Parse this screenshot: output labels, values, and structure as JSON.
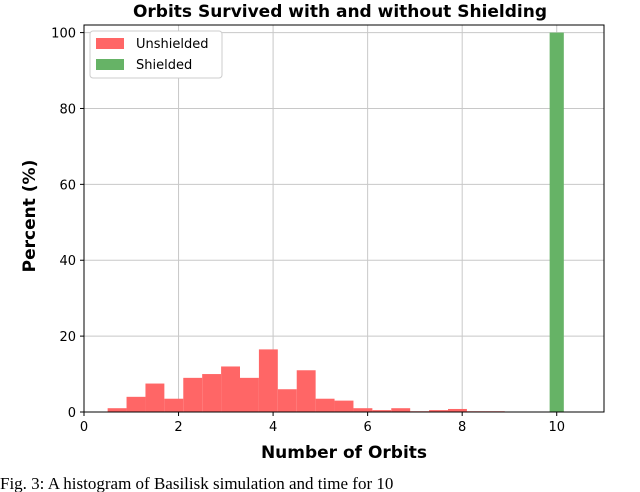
{
  "caption": "Fig. 3: A histogram of Basilisk simulation and time for 10",
  "chart_data": {
    "type": "bar",
    "title": "Orbits Survived with and without Shielding",
    "xlabel": "Number of Orbits",
    "ylabel": "Percent (%)",
    "xlim": [
      0,
      11
    ],
    "ylim": [
      0,
      102
    ],
    "xticks": [
      0,
      2,
      4,
      6,
      8,
      10
    ],
    "yticks": [
      0,
      20,
      40,
      60,
      80,
      100
    ],
    "grid": true,
    "legend_position": "top-left",
    "series": [
      {
        "name": "Unshielded",
        "color": "#ff6666",
        "bins": [
          {
            "x0": 0.5,
            "x1": 0.9,
            "value": 1
          },
          {
            "x0": 0.9,
            "x1": 1.3,
            "value": 4
          },
          {
            "x0": 1.3,
            "x1": 1.7,
            "value": 7.5
          },
          {
            "x0": 1.7,
            "x1": 2.1,
            "value": 3.5
          },
          {
            "x0": 2.1,
            "x1": 2.5,
            "value": 9
          },
          {
            "x0": 2.5,
            "x1": 2.9,
            "value": 10
          },
          {
            "x0": 2.9,
            "x1": 3.3,
            "value": 12
          },
          {
            "x0": 3.3,
            "x1": 3.7,
            "value": 9
          },
          {
            "x0": 3.7,
            "x1": 4.1,
            "value": 16.5
          },
          {
            "x0": 4.1,
            "x1": 4.5,
            "value": 6
          },
          {
            "x0": 4.5,
            "x1": 4.9,
            "value": 11
          },
          {
            "x0": 4.9,
            "x1": 5.3,
            "value": 3.5
          },
          {
            "x0": 5.3,
            "x1": 5.7,
            "value": 3
          },
          {
            "x0": 5.7,
            "x1": 6.1,
            "value": 1
          },
          {
            "x0": 6.1,
            "x1": 6.5,
            "value": 0.5
          },
          {
            "x0": 6.5,
            "x1": 6.9,
            "value": 1
          },
          {
            "x0": 6.9,
            "x1": 7.3,
            "value": 0.2
          },
          {
            "x0": 7.3,
            "x1": 7.7,
            "value": 0.5
          },
          {
            "x0": 7.7,
            "x1": 8.1,
            "value": 0.8
          },
          {
            "x0": 8.1,
            "x1": 8.5,
            "value": 0.2
          },
          {
            "x0": 8.5,
            "x1": 8.9,
            "value": 0.2
          }
        ]
      },
      {
        "name": "Shielded",
        "color": "#66b366",
        "bins": [
          {
            "x0": 9.85,
            "x1": 10.15,
            "value": 100
          }
        ]
      }
    ]
  }
}
